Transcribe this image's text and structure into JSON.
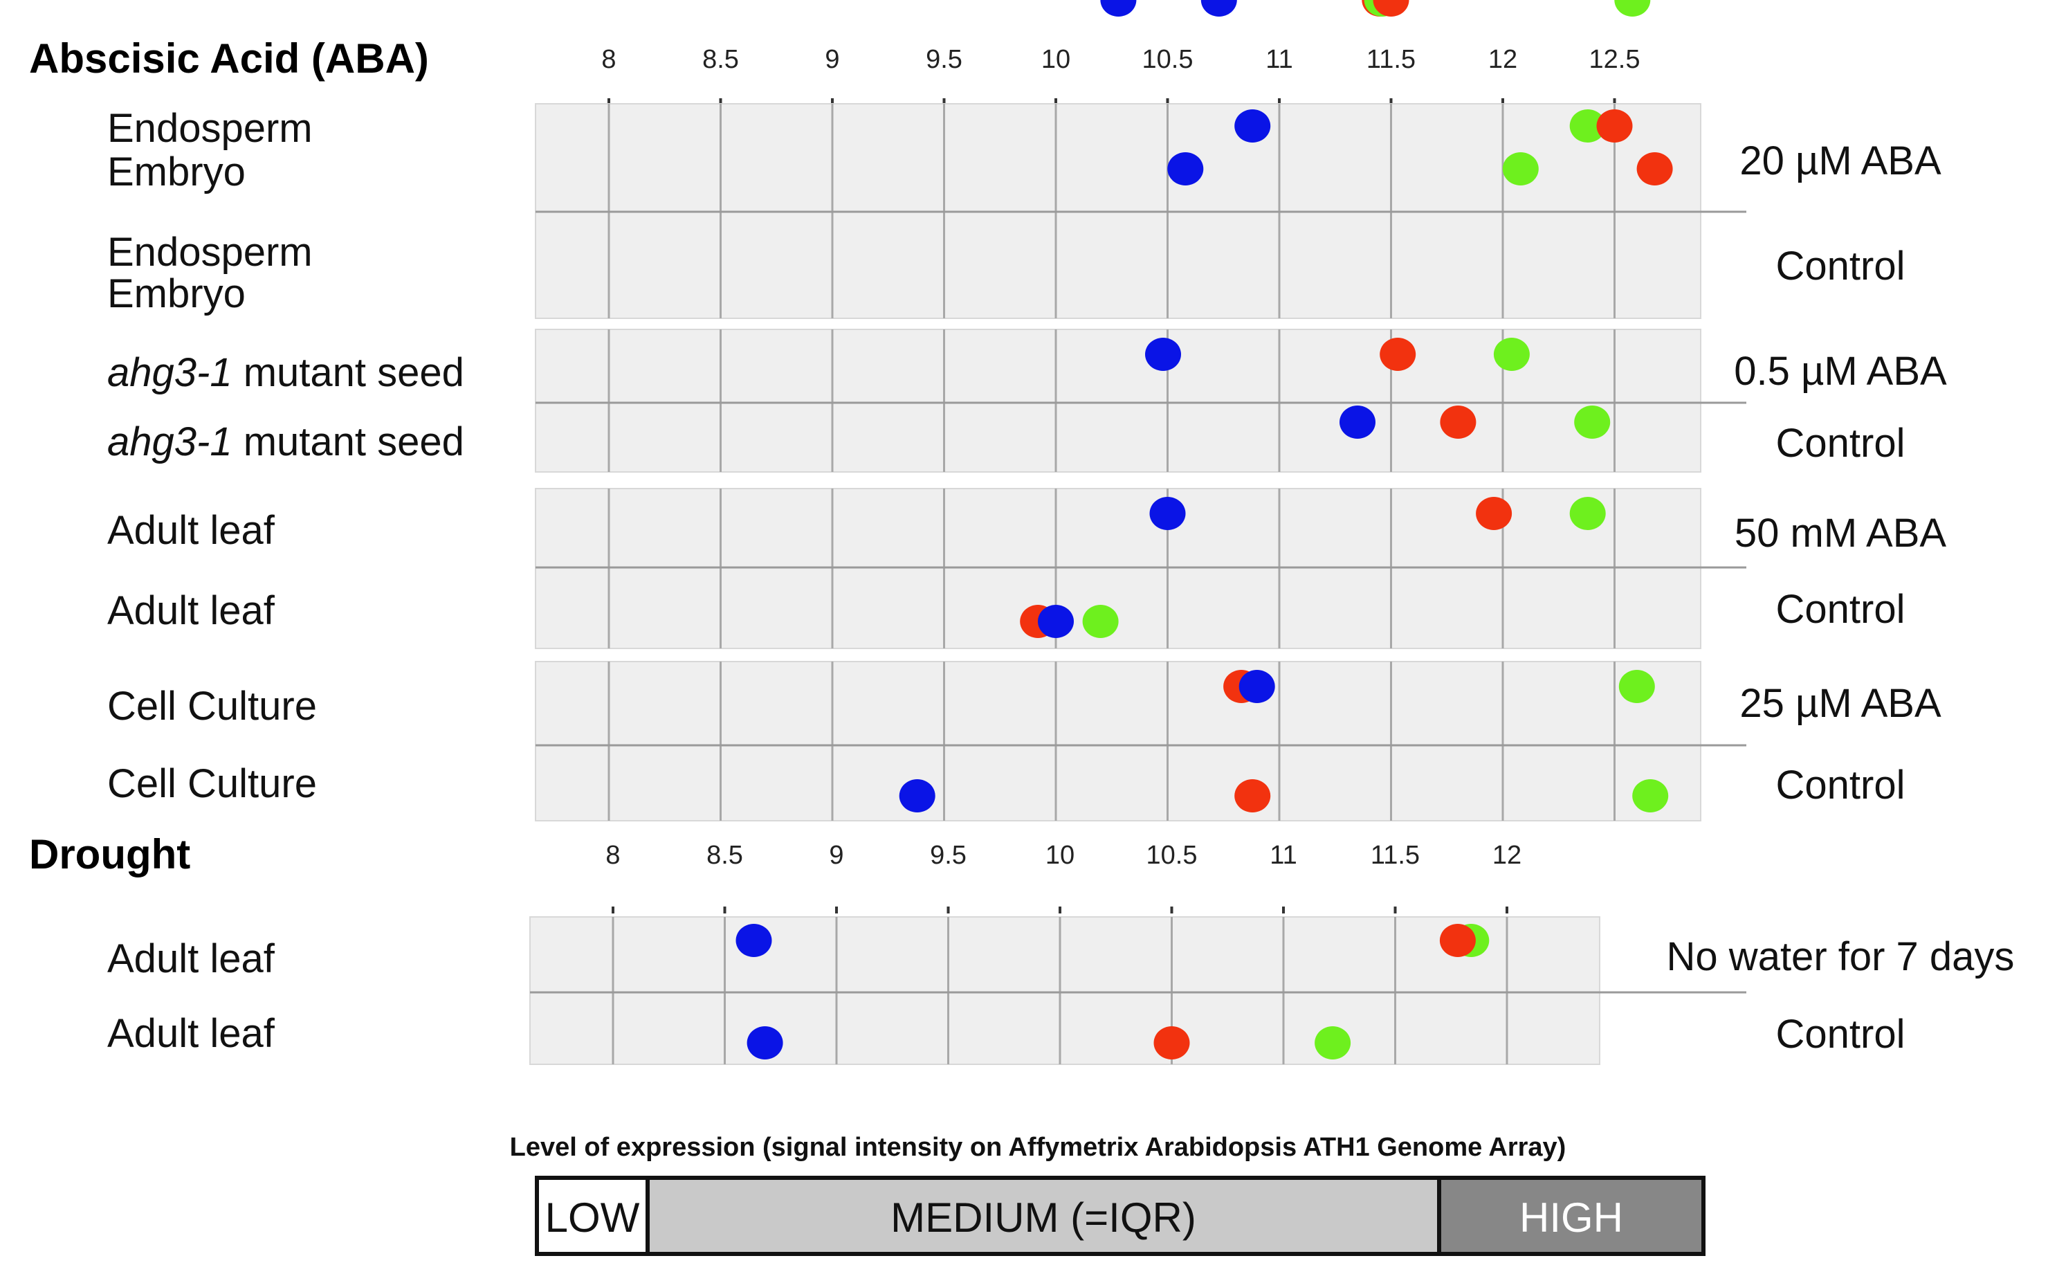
{
  "chart_data": {
    "type": "scatter",
    "colors": {
      "blue": "#0a14e6",
      "red": "#f2320f",
      "green": "#6ef01e"
    },
    "panels": [
      {
        "title": "Abscisic Acid (ABA)",
        "x_ticks": [
          "8",
          "8.5",
          "9",
          "9.5",
          "10",
          "10.5",
          "11",
          "11.5",
          "12",
          "12.5"
        ],
        "xlim": [
          7.66,
          13.0
        ],
        "rows": [
          {
            "label": "Endosperm",
            "points": {
              "blue": 10.88,
              "red": 12.5,
              "green": 12.38
            }
          },
          {
            "label": "Embryo",
            "points": {
              "blue": 10.58,
              "red": 12.68,
              "green": 12.08
            }
          },
          {
            "label": "Endosperm",
            "points": {
              "blue": 10.48,
              "red": 11.53,
              "green": 12.04
            }
          },
          {
            "label": "Embryo",
            "points": {
              "blue": 11.35,
              "red": 11.8,
              "green": 12.4
            }
          },
          {
            "label_italic": "ahg3-1",
            "label": " mutant seed",
            "points": {
              "blue": 10.5,
              "red": 11.96,
              "green": 12.38
            }
          },
          {
            "label_italic": "ahg3-1",
            "label": " mutant seed",
            "points": {
              "blue": 10.0,
              "red": 9.92,
              "green": 10.2
            }
          },
          {
            "label": "Adult leaf",
            "points": {
              "blue": 10.9,
              "red": 10.83,
              "green": 12.6
            }
          },
          {
            "label": "Adult leaf",
            "points": {
              "blue": 9.38,
              "red": 10.88,
              "green": 12.66
            }
          },
          {
            "label": "Cell Culture",
            "points": {
              "blue": 10.73,
              "red": 11.45,
              "green": 12.58
            }
          },
          {
            "label": "Cell Culture",
            "points": {
              "blue": 10.28,
              "red": 11.5,
              "green": 11.46
            }
          }
        ],
        "conditions": [
          "20 µM ABA",
          "Control",
          "0.5 µM ABA",
          "Control",
          "50 mM ABA",
          "Control",
          "25 µM ABA",
          "Control"
        ]
      },
      {
        "title": "Drought",
        "x_ticks": [
          "8",
          "8.5",
          "9",
          "9.5",
          "10",
          "10.5",
          "11",
          "11.5",
          "12"
        ],
        "xlim": [
          7.8,
          12.4
        ],
        "rows": [
          {
            "label": "Adult leaf",
            "points": {
              "blue": 8.63,
              "red": 11.78,
              "green": 11.84
            }
          },
          {
            "label": "Adult leaf",
            "points": {
              "blue": 8.68,
              "red": 10.5,
              "green": 11.22
            }
          }
        ],
        "conditions": [
          "No water for 7 days",
          "Control"
        ]
      }
    ],
    "scale_legend": {
      "caption": "Level of expression (signal intensity on Affymetrix Arabidopsis  ATH1 Genome Array)",
      "low": "LOW",
      "medium": "MEDIUM (=IQR)",
      "high": "HIGH"
    }
  }
}
